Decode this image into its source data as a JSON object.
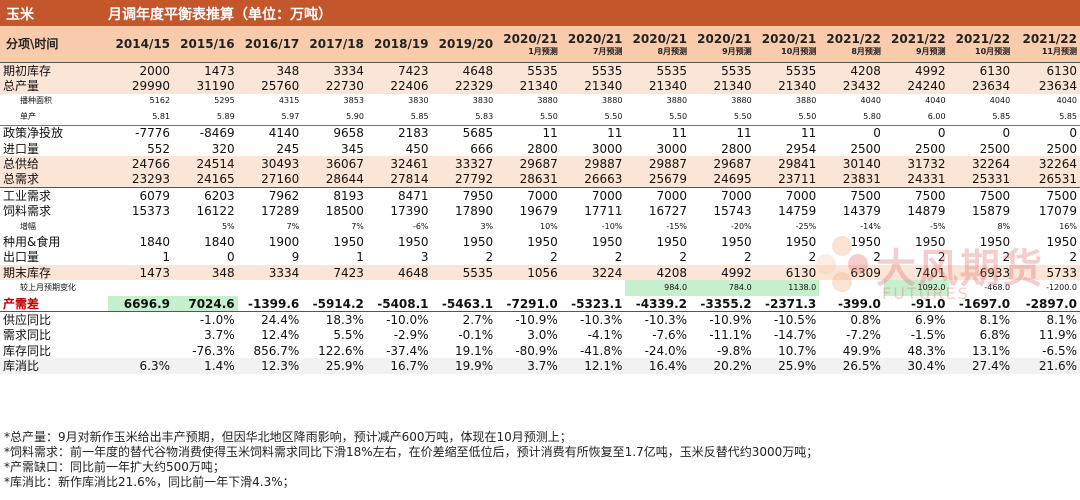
{
  "title": {
    "left": "玉米",
    "right": "月调年度平衡表推算（单位：万吨）"
  },
  "header": {
    "first": "分项\\时间",
    "columns": [
      {
        "y": "2014/15",
        "s": ""
      },
      {
        "y": "2015/16",
        "s": ""
      },
      {
        "y": "2016/17",
        "s": ""
      },
      {
        "y": "2017/18",
        "s": ""
      },
      {
        "y": "2018/19",
        "s": ""
      },
      {
        "y": "2019/20",
        "s": ""
      },
      {
        "y": "2020/21",
        "s": "1月预测"
      },
      {
        "y": "2020/21",
        "s": "7月预测"
      },
      {
        "y": "2020/21",
        "s": "8月预测"
      },
      {
        "y": "2020/21",
        "s": "9月预测"
      },
      {
        "y": "2020/21",
        "s": "10月预测"
      },
      {
        "y": "2021/22",
        "s": "8月预测"
      },
      {
        "y": "2021/22",
        "s": "9月预测"
      },
      {
        "y": "2021/22",
        "s": "10月预测"
      },
      {
        "y": "2021/22",
        "s": "11月预测"
      }
    ]
  },
  "rows": [
    {
      "label": "期初库存",
      "type": "main",
      "style": "pink",
      "cells": [
        "2000",
        "1473",
        "348",
        "3334",
        "7423",
        "4648",
        "5535",
        "5535",
        "5535",
        "5535",
        "5535",
        "4208",
        "4992",
        "6130",
        "6130"
      ]
    },
    {
      "label": "总产量",
      "type": "main",
      "style": "pink",
      "cells": [
        "29990",
        "31190",
        "25760",
        "22730",
        "22406",
        "22329",
        "21340",
        "21340",
        "21340",
        "21340",
        "21340",
        "23432",
        "24240",
        "23634",
        "23634"
      ]
    },
    {
      "label": "播种面积",
      "type": "sub",
      "style": "",
      "cells": [
        "5162",
        "5295",
        "4315",
        "3853",
        "3830",
        "3830",
        "3880",
        "3880",
        "3880",
        "3880",
        "3880",
        "4040",
        "4040",
        "4040",
        "4040"
      ]
    },
    {
      "label": "单产",
      "type": "sub",
      "style": "",
      "cells": [
        "5.81",
        "5.89",
        "5.97",
        "5.90",
        "5.85",
        "5.83",
        "5.50",
        "5.50",
        "5.50",
        "5.50",
        "5.50",
        "5.80",
        "6.00",
        "5.85",
        "5.85"
      ]
    },
    {
      "label": "政策净投放",
      "type": "main",
      "style": "gap",
      "cells": [
        "-7776",
        "-8469",
        "4140",
        "9658",
        "2183",
        "5685",
        "11",
        "11",
        "11",
        "11",
        "11",
        "0",
        "0",
        "0",
        "0"
      ]
    },
    {
      "label": "进口量",
      "type": "main",
      "style": "",
      "cells": [
        "552",
        "320",
        "245",
        "345",
        "450",
        "666",
        "2800",
        "3000",
        "3000",
        "2800",
        "2954",
        "2500",
        "2500",
        "2500",
        "2500"
      ]
    },
    {
      "label": "总供给",
      "type": "main",
      "style": "pink",
      "cells": [
        "24766",
        "24514",
        "30493",
        "36067",
        "32461",
        "33327",
        "29687",
        "29887",
        "29887",
        "29687",
        "29841",
        "30140",
        "31732",
        "32264",
        "32264"
      ]
    },
    {
      "label": "总需求",
      "type": "main",
      "style": "pink",
      "cells": [
        "23293",
        "24165",
        "27160",
        "28644",
        "27814",
        "27792",
        "28631",
        "26663",
        "25679",
        "24695",
        "23711",
        "23831",
        "24331",
        "25331",
        "26531"
      ]
    },
    {
      "label": "工业需求",
      "type": "main",
      "style": "sep",
      "cells": [
        "6079",
        "6203",
        "7962",
        "8193",
        "8471",
        "7950",
        "7000",
        "7000",
        "7000",
        "7000",
        "7000",
        "7500",
        "7500",
        "7500",
        "7500"
      ]
    },
    {
      "label": "饲料需求",
      "type": "main",
      "style": "",
      "cells": [
        "15373",
        "16122",
        "17289",
        "18500",
        "17390",
        "17890",
        "19679",
        "17711",
        "16727",
        "15743",
        "14759",
        "14379",
        "14879",
        "15879",
        "17079"
      ]
    },
    {
      "label": "增幅",
      "type": "sub",
      "style": "",
      "cells": [
        "",
        "5%",
        "7%",
        "7%",
        "-6%",
        "3%",
        "10%",
        "-10%",
        "-15%",
        "-20%",
        "-25%",
        "-14%",
        "-5%",
        "8%",
        "16%"
      ]
    },
    {
      "label": "种用&食用",
      "type": "main",
      "style": "",
      "cells": [
        "1840",
        "1840",
        "1900",
        "1950",
        "1950",
        "1950",
        "1950",
        "1950",
        "1950",
        "1950",
        "1950",
        "1950",
        "1950",
        "1950",
        "1950"
      ]
    },
    {
      "label": "出口量",
      "type": "main",
      "style": "",
      "cells": [
        "1",
        "0",
        "9",
        "1",
        "3",
        "2",
        "2",
        "2",
        "2",
        "2",
        "2",
        "2",
        "2",
        "2",
        "2"
      ]
    },
    {
      "label": "期末库存",
      "type": "main",
      "style": "pink",
      "cells": [
        "1473",
        "348",
        "3334",
        "7423",
        "4648",
        "5535",
        "1056",
        "3224",
        "4208",
        "4992",
        "6130",
        "6309",
        "7401",
        "6933",
        "5733"
      ]
    },
    {
      "label": "较上月预期变化",
      "type": "sub",
      "style": "",
      "cells": [
        "",
        "",
        "",
        "",
        "",
        "",
        "",
        "",
        "984.0",
        "784.0",
        "1138.0",
        "",
        "1092.0",
        "-468.0",
        "-1200.0"
      ]
    },
    {
      "label": "产需差",
      "type": "main",
      "style": "shortage",
      "cells": [
        "6696.9",
        "7024.6",
        "-1399.6",
        "-5914.2",
        "-5408.1",
        "-5463.1",
        "-7291.0",
        "-5323.1",
        "-4339.2",
        "-3355.2",
        "-2371.3",
        "-399.0",
        "-91.0",
        "-1697.0",
        "-2897.0"
      ]
    },
    {
      "label": "供应同比",
      "type": "main",
      "style": "sep",
      "cells": [
        "",
        "-1.0%",
        "24.4%",
        "18.3%",
        "-10.0%",
        "2.7%",
        "-10.9%",
        "-10.3%",
        "-10.3%",
        "-10.9%",
        "-10.5%",
        "0.8%",
        "6.9%",
        "8.1%",
        "8.1%"
      ]
    },
    {
      "label": "需求同比",
      "type": "main",
      "style": "",
      "cells": [
        "",
        "3.7%",
        "12.4%",
        "5.5%",
        "-2.9%",
        "-0.1%",
        "3.0%",
        "-4.1%",
        "-7.6%",
        "-11.1%",
        "-14.7%",
        "-7.2%",
        "-1.5%",
        "6.8%",
        "11.9%"
      ]
    },
    {
      "label": "库存同比",
      "type": "main",
      "style": "",
      "cells": [
        "",
        "-76.3%",
        "856.7%",
        "122.6%",
        "-37.4%",
        "19.1%",
        "-80.9%",
        "-41.8%",
        "-24.0%",
        "-9.8%",
        "10.7%",
        "49.9%",
        "48.3%",
        "13.1%",
        "-6.5%"
      ]
    },
    {
      "label": "库消比",
      "type": "main",
      "style": "gray",
      "cells": [
        "6.3%",
        "1.4%",
        "12.3%",
        "25.9%",
        "16.7%",
        "19.9%",
        "3.7%",
        "12.1%",
        "16.4%",
        "20.2%",
        "25.9%",
        "26.5%",
        "30.4%",
        "27.4%",
        "21.6%"
      ]
    }
  ],
  "highlights": {
    "green_row": "较上月预期变化",
    "green_cols": [
      8,
      9,
      10,
      12
    ],
    "shortage_green_cols": [
      0,
      1
    ]
  },
  "notes": [
    "*总产量：9月对新作玉米给出丰产预期，但因华北地区降雨影响，预计减产600万吨，体现在10月预测上；",
    "*饲料需求：前一年度的替代谷物消费使得玉米饲料需求同比下滑18%左右，在价差缩至低位后，预计消费有所恢复至1.7亿吨，玉米反替代约3000万吨；",
    "*产需缺口：同比前一年扩大约500万吨；",
    "*库消比：新作库消比21.6%，同比前一年下滑4.3%；"
  ],
  "watermark": {
    "text": "大风期货",
    "sub": "FUTURES"
  },
  "colors": {
    "title_bg": "#c4562c",
    "header_bg": "#f8cbad",
    "pink_row": "#fbe5d6",
    "green": "#c6efce",
    "negative": "#c00000"
  }
}
